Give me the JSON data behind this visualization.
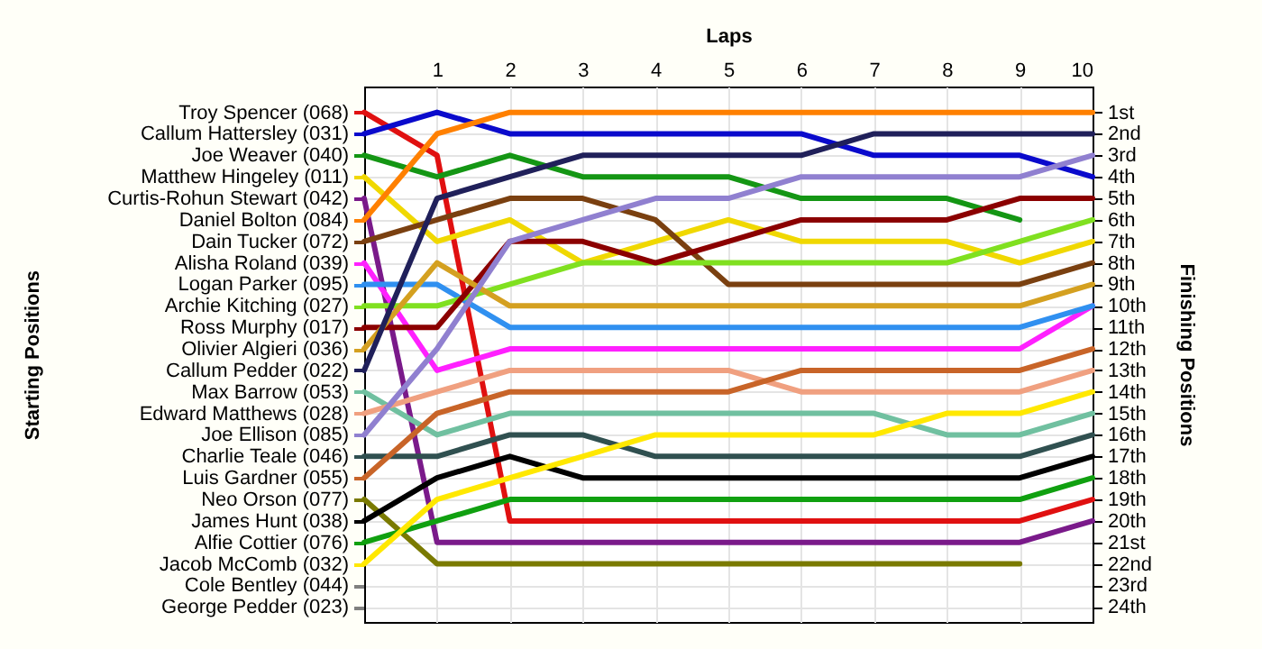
{
  "chart_data": {
    "type": "line",
    "xlabel": "Laps",
    "legend_title": "Starting Positions",
    "legend": "left",
    "y2label": "Finishing Positions",
    "x": [
      0,
      1,
      2,
      3,
      4,
      5,
      6,
      7,
      8,
      9,
      10
    ],
    "xlim": [
      0,
      10
    ],
    "xticks": [
      1,
      2,
      3,
      4,
      5,
      6,
      7,
      8,
      9,
      10
    ],
    "y2lim": [
      24.7,
      -0.2
    ],
    "y2ticks": [
      {
        "value": 1,
        "label": "1st"
      },
      {
        "value": 2,
        "label": "2nd"
      },
      {
        "value": 3,
        "label": "3rd"
      },
      {
        "value": 4,
        "label": "4th"
      },
      {
        "value": 5,
        "label": "5th"
      },
      {
        "value": 6,
        "label": "6th"
      },
      {
        "value": 7,
        "label": "7th"
      },
      {
        "value": 8,
        "label": "8th"
      },
      {
        "value": 9,
        "label": "9th"
      },
      {
        "value": 10,
        "label": "10th"
      },
      {
        "value": 11,
        "label": "11th"
      },
      {
        "value": 12,
        "label": "12th"
      },
      {
        "value": 13,
        "label": "13th"
      },
      {
        "value": 14,
        "label": "14th"
      },
      {
        "value": 15,
        "label": "15th"
      },
      {
        "value": 16,
        "label": "16th"
      },
      {
        "value": 17,
        "label": "17th"
      },
      {
        "value": 18,
        "label": "18th"
      },
      {
        "value": 19,
        "label": "19th"
      },
      {
        "value": 20,
        "label": "20th"
      },
      {
        "value": 21,
        "label": "21st"
      },
      {
        "value": 22,
        "label": "22nd"
      },
      {
        "value": 23,
        "label": "23rd"
      },
      {
        "value": 24,
        "label": "24th"
      }
    ],
    "grid": true,
    "marker": "none",
    "line_style": "solid",
    "series": [
      {
        "name": "Troy Spencer (068)",
        "axis": "y2",
        "color": "#e01010",
        "values": [
          1,
          3,
          20,
          20,
          20,
          20,
          20,
          20,
          20,
          20,
          19
        ]
      },
      {
        "name": "Callum Hattersley (031)",
        "axis": "y2",
        "color": "#0a0acc",
        "values": [
          2,
          1,
          2,
          2,
          2,
          2,
          2,
          3,
          3,
          3,
          4
        ]
      },
      {
        "name": "Joe Weaver (040)",
        "axis": "y2",
        "color": "#149614",
        "values": [
          3,
          4,
          3,
          4,
          4,
          4,
          5,
          5,
          5,
          6,
          null
        ]
      },
      {
        "name": "Matthew Hingeley (011)",
        "axis": "y2",
        "color": "#f0d800",
        "values": [
          4,
          7,
          6,
          8,
          7,
          6,
          7,
          7,
          7,
          8,
          7
        ]
      },
      {
        "name": "Curtis-Rohun Stewart (042)",
        "axis": "y2",
        "color": "#7a1a8a",
        "values": [
          5,
          21,
          21,
          21,
          21,
          21,
          21,
          21,
          21,
          21,
          20
        ]
      },
      {
        "name": "Daniel Bolton (084)",
        "axis": "y2",
        "color": "#ff8000",
        "values": [
          6,
          2,
          1,
          1,
          1,
          1,
          1,
          1,
          1,
          1,
          1
        ]
      },
      {
        "name": "Dain Tucker (072)",
        "axis": "y2",
        "color": "#7a4010",
        "values": [
          7,
          6,
          5,
          5,
          6,
          9,
          9,
          9,
          9,
          9,
          8
        ]
      },
      {
        "name": "Alisha Roland (039)",
        "axis": "y2",
        "color": "#ff20ff",
        "values": [
          8,
          13,
          12,
          12,
          12,
          12,
          12,
          12,
          12,
          12,
          10
        ]
      },
      {
        "name": "Logan Parker (095)",
        "axis": "y2",
        "color": "#3090f0",
        "values": [
          9,
          9,
          11,
          11,
          11,
          11,
          11,
          11,
          11,
          11,
          10
        ]
      },
      {
        "name": "Archie Kitching (027)",
        "axis": "y2",
        "color": "#80e020",
        "values": [
          10,
          10,
          9,
          8,
          8,
          8,
          8,
          8,
          8,
          7,
          6
        ]
      },
      {
        "name": "Ross Murphy (017)",
        "axis": "y2",
        "color": "#8b0000",
        "values": [
          11,
          11,
          7,
          7,
          8,
          7,
          6,
          6,
          6,
          5,
          5
        ]
      },
      {
        "name": "Olivier Algieri (036)",
        "axis": "y2",
        "color": "#d4a020",
        "values": [
          12,
          8,
          10,
          10,
          10,
          10,
          10,
          10,
          10,
          10,
          9
        ]
      },
      {
        "name": "Callum Pedder (022)",
        "axis": "y2",
        "color": "#20205a",
        "values": [
          13,
          5,
          4,
          3,
          3,
          3,
          3,
          2,
          2,
          2,
          2
        ]
      },
      {
        "name": "Max Barrow (053)",
        "axis": "y2",
        "color": "#70c0a0",
        "values": [
          14,
          16,
          15,
          15,
          15,
          15,
          15,
          15,
          16,
          16,
          15
        ]
      },
      {
        "name": "Edward Matthews (028)",
        "axis": "y2",
        "color": "#f0a080",
        "values": [
          15,
          14,
          13,
          13,
          13,
          13,
          14,
          14,
          14,
          14,
          13
        ]
      },
      {
        "name": "Joe Ellison (085)",
        "axis": "y2",
        "color": "#9080d0",
        "values": [
          16,
          12,
          7,
          6,
          5,
          5,
          4,
          4,
          4,
          4,
          3
        ]
      },
      {
        "name": "Charlie Teale (046)",
        "axis": "y2",
        "color": "#305050",
        "values": [
          17,
          17,
          16,
          16,
          17,
          17,
          17,
          17,
          17,
          17,
          16
        ]
      },
      {
        "name": "Luis Gardner (055)",
        "axis": "y2",
        "color": "#c86428",
        "values": [
          18,
          15,
          14,
          14,
          14,
          14,
          13,
          13,
          13,
          13,
          12
        ]
      },
      {
        "name": "Neo Orson (077)",
        "axis": "y2",
        "color": "#7a7a00",
        "values": [
          19,
          22,
          22,
          22,
          22,
          22,
          22,
          22,
          22,
          22,
          null
        ]
      },
      {
        "name": "James Hunt (038)",
        "axis": "y2",
        "color": "#000000",
        "values": [
          20,
          18,
          17,
          18,
          18,
          18,
          18,
          18,
          18,
          18,
          17
        ]
      },
      {
        "name": "Alfie Cottier (076)",
        "axis": "y2",
        "color": "#10a010",
        "values": [
          21,
          20,
          19,
          19,
          19,
          19,
          19,
          19,
          19,
          19,
          18
        ]
      },
      {
        "name": "Jacob McComb (032)",
        "axis": "y2",
        "color": "#ffe800",
        "values": [
          22,
          19,
          18,
          17,
          16,
          16,
          16,
          16,
          15,
          15,
          14
        ]
      },
      {
        "name": "Cole Bentley (044)",
        "axis": "y2",
        "color": "#808080",
        "values": [
          null,
          null,
          null,
          null,
          null,
          null,
          null,
          null,
          null,
          null,
          null
        ]
      },
      {
        "name": "George Pedder (023)",
        "axis": "y2",
        "color": "#808080",
        "values": [
          null,
          null,
          null,
          null,
          null,
          null,
          null,
          null,
          null,
          null,
          null
        ]
      }
    ]
  }
}
